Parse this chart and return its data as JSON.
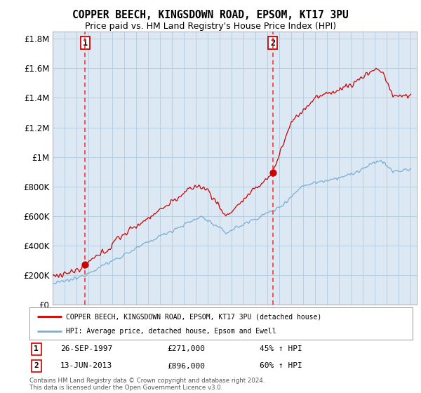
{
  "title": "COPPER BEECH, KINGSDOWN ROAD, EPSOM, KT17 3PU",
  "subtitle": "Price paid vs. HM Land Registry's House Price Index (HPI)",
  "title_fontsize": 10.5,
  "subtitle_fontsize": 9,
  "ylim": [
    0,
    1850000
  ],
  "yticks": [
    0,
    200000,
    400000,
    600000,
    800000,
    1000000,
    1200000,
    1400000,
    1600000,
    1800000
  ],
  "ytick_labels": [
    "£0",
    "£200K",
    "£400K",
    "£600K",
    "£800K",
    "£1M",
    "£1.2M",
    "£1.4M",
    "£1.6M",
    "£1.8M"
  ],
  "xlim_start": 1995.0,
  "xlim_end": 2025.5,
  "sale1_x": 1997.73,
  "sale1_y": 271000,
  "sale2_x": 2013.44,
  "sale2_y": 896000,
  "line_color_property": "#cc0000",
  "line_color_hpi": "#7aadd4",
  "legend_label_property": "COPPER BEECH, KINGSDOWN ROAD, EPSOM, KT17 3PU (detached house)",
  "legend_label_hpi": "HPI: Average price, detached house, Epsom and Ewell",
  "sale1_date": "26-SEP-1997",
  "sale1_price": "£271,000",
  "sale1_hpi": "45% ↑ HPI",
  "sale2_date": "13-JUN-2013",
  "sale2_price": "£896,000",
  "sale2_hpi": "60% ↑ HPI",
  "footer": "Contains HM Land Registry data © Crown copyright and database right 2024.\nThis data is licensed under the Open Government Licence v3.0.",
  "background_color": "#ffffff",
  "plot_bg_color": "#dce9f5",
  "grid_color": "#b8cfe0"
}
